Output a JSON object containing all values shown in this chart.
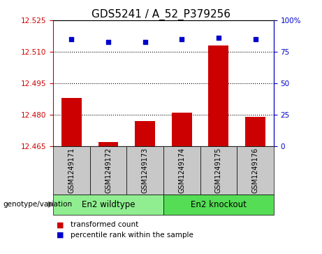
{
  "title": "GDS5241 / A_52_P379256",
  "samples": [
    "GSM1249171",
    "GSM1249172",
    "GSM1249173",
    "GSM1249174",
    "GSM1249175",
    "GSM1249176"
  ],
  "transformed_counts": [
    12.488,
    12.467,
    12.477,
    12.481,
    12.513,
    12.479
  ],
  "percentile_ranks": [
    85,
    83,
    83,
    85,
    86,
    85
  ],
  "ylim_left": [
    12.465,
    12.525
  ],
  "ylim_right": [
    0,
    100
  ],
  "yticks_left": [
    12.465,
    12.48,
    12.495,
    12.51,
    12.525
  ],
  "yticks_right": [
    0,
    25,
    50,
    75,
    100
  ],
  "ytick_labels_right": [
    "0",
    "25",
    "50",
    "75",
    "100%"
  ],
  "groups": [
    {
      "label": "En2 wildtype",
      "indices": [
        0,
        1,
        2
      ],
      "color": "#90EE90"
    },
    {
      "label": "En2 knockout",
      "indices": [
        3,
        4,
        5
      ],
      "color": "#55DD55"
    }
  ],
  "bar_color": "#CC0000",
  "dot_color": "#0000CC",
  "bar_width": 0.55,
  "bg_color": "#C8C8C8",
  "legend_bar_label": "transformed count",
  "legend_dot_label": "percentile rank within the sample",
  "genotype_label": "genotype/variation",
  "left_axis_color": "#CC0000",
  "right_axis_color": "#0000CC",
  "grid_ticks": [
    12.51,
    12.495,
    12.48
  ],
  "title_fontsize": 11,
  "tick_fontsize": 7.5,
  "sample_fontsize": 7,
  "group_fontsize": 8.5,
  "legend_fontsize": 7.5,
  "genotype_fontsize": 7.5
}
